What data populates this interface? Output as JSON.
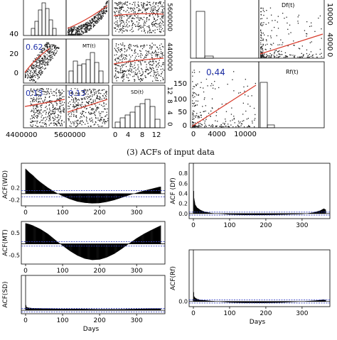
{
  "caption": "(3) ACFs of input data",
  "scatter_left": {
    "var_labels": [
      "MT(t)",
      "SD(t)"
    ],
    "corr_labels": [
      "0.62",
      "0.13",
      "0.13"
    ],
    "left_ticks": [
      "40",
      "20",
      "0"
    ],
    "right_ticks_top": [
      "5600000",
      "4400000"
    ],
    "right_ticks_bottom": [
      "12",
      "8",
      "4",
      "0"
    ],
    "bottom_ticks_left": [
      "4400000",
      "5600000"
    ],
    "bottom_ticks_right": [
      "0",
      "4",
      "8",
      "12"
    ]
  },
  "scatter_right": {
    "var_labels": [
      "Df(t)",
      "Rf(t)"
    ],
    "corr_labels": [
      "0.44"
    ],
    "left_ticks": [
      "150",
      "100",
      "50",
      "0"
    ],
    "right_ticks": [
      "10000",
      "4000",
      "0"
    ],
    "bottom_ticks": [
      "0",
      "4000",
      "10000"
    ]
  },
  "acf_x_label": "Days",
  "chart_data": [
    {
      "type": "bar",
      "panel": "acf-wd",
      "ylabel": "ACF(WD)",
      "xlabel": "",
      "x_ticks": [
        "0",
        "100",
        "200",
        "300"
      ],
      "y_ticks": [
        "0.2",
        "-0.2"
      ],
      "xlim": [
        0,
        365
      ],
      "ylim": [
        -0.4,
        1.0
      ],
      "grid": false,
      "confidence_band": 0.1,
      "lags": [
        0,
        10,
        20,
        30,
        40,
        60,
        80,
        100,
        120,
        140,
        160,
        180,
        200,
        220,
        240,
        260,
        280,
        300,
        320,
        340,
        360,
        365
      ],
      "values": [
        0.82,
        0.7,
        0.6,
        0.48,
        0.38,
        0.2,
        0.05,
        -0.08,
        -0.18,
        -0.26,
        -0.3,
        -0.32,
        -0.31,
        -0.27,
        -0.21,
        -0.13,
        -0.05,
        0.03,
        0.1,
        0.16,
        0.22,
        0.23
      ]
    },
    {
      "type": "bar",
      "panel": "acf-mt",
      "ylabel": "ACF(MT)",
      "xlabel": "",
      "x_ticks": [
        "0",
        "100",
        "200",
        "300"
      ],
      "y_ticks": [
        "0.5",
        "-0.5"
      ],
      "xlim": [
        0,
        365
      ],
      "ylim": [
        -0.9,
        1.0
      ],
      "grid": false,
      "confidence_band": 0.1,
      "lags": [
        0,
        10,
        20,
        40,
        60,
        80,
        100,
        120,
        140,
        160,
        180,
        200,
        220,
        240,
        260,
        280,
        300,
        320,
        340,
        360,
        365
      ],
      "values": [
        0.92,
        0.88,
        0.82,
        0.66,
        0.45,
        0.18,
        -0.08,
        -0.32,
        -0.52,
        -0.66,
        -0.72,
        -0.7,
        -0.6,
        -0.44,
        -0.22,
        0.02,
        0.25,
        0.45,
        0.62,
        0.78,
        0.82
      ]
    },
    {
      "type": "bar",
      "panel": "acf-sd",
      "ylabel": "ACF(SD)",
      "xlabel": "Days",
      "x_ticks": [
        "0",
        "100",
        "200",
        "300"
      ],
      "y_ticks": [],
      "xlim": [
        0,
        365
      ],
      "ylim": [
        -0.1,
        1.0
      ],
      "grid": false,
      "confidence_band": 0.05,
      "lags": [
        0,
        1,
        2,
        5,
        10,
        20,
        60,
        100,
        150,
        200,
        250,
        300,
        340,
        365
      ],
      "values": [
        1.0,
        0.15,
        0.1,
        0.08,
        0.07,
        0.06,
        0.05,
        0.04,
        0.04,
        0.03,
        0.03,
        0.04,
        0.05,
        0.05
      ]
    },
    {
      "type": "bar",
      "panel": "acf-df",
      "ylabel": "ACF (Df)",
      "xlabel": "",
      "x_ticks": [
        "0",
        "100",
        "200",
        "300"
      ],
      "y_ticks": [
        "0.8",
        "0.6",
        "0.4",
        "0.2",
        "0.0"
      ],
      "xlim": [
        0,
        365
      ],
      "ylim": [
        -0.1,
        1.0
      ],
      "grid": false,
      "confidence_band": 0.03,
      "lags": [
        0,
        1,
        2,
        5,
        10,
        20,
        30,
        50,
        100,
        150,
        200,
        250,
        300,
        330,
        350,
        360,
        365
      ],
      "values": [
        1.0,
        0.45,
        0.3,
        0.18,
        0.12,
        0.07,
        0.04,
        0.01,
        -0.02,
        -0.03,
        -0.03,
        -0.02,
        -0.01,
        0.02,
        0.06,
        0.1,
        0.08
      ]
    },
    {
      "type": "bar",
      "panel": "acf-rf",
      "ylabel": "ACF(Rf)",
      "xlabel": "Days",
      "x_ticks": [
        "0",
        "100",
        "200",
        "300"
      ],
      "y_ticks": [
        "0.0"
      ],
      "xlim": [
        0,
        365
      ],
      "ylim": [
        -0.1,
        1.0
      ],
      "grid": false,
      "confidence_band": 0.03,
      "lags": [
        0,
        1,
        2,
        5,
        10,
        20,
        50,
        100,
        150,
        200,
        250,
        300,
        340,
        360,
        365
      ],
      "values": [
        1.0,
        0.18,
        0.1,
        0.07,
        0.05,
        0.03,
        0.01,
        -0.02,
        -0.03,
        -0.03,
        -0.02,
        0.0,
        0.02,
        0.04,
        0.03
      ]
    }
  ]
}
